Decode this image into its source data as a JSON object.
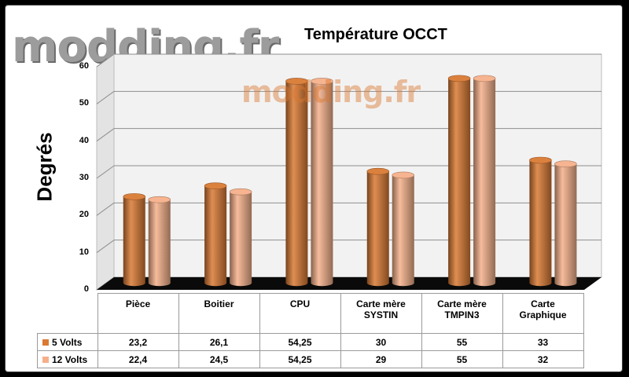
{
  "watermark": "modding.fr",
  "chart_data": {
    "type": "bar",
    "title": "Température OCCT",
    "ylabel": "Degrés",
    "xlabel": "",
    "ylim": [
      0,
      60
    ],
    "yticks": [
      "0",
      "10",
      "20",
      "30",
      "40",
      "50",
      "60"
    ],
    "categories": [
      "Pièce",
      "Boitier",
      "CPU",
      "Carte mère SYSTIN",
      "Carte mère TMPIN3",
      "Carte Graphique"
    ],
    "category_lines": [
      [
        "Pièce"
      ],
      [
        "Boitier"
      ],
      [
        "CPU"
      ],
      [
        "Carte mère",
        "SYSTIN"
      ],
      [
        "Carte mère",
        "TMPIN3"
      ],
      [
        "Carte",
        "Graphique"
      ]
    ],
    "series": [
      {
        "name": "5 Volts",
        "color": "#d97a34",
        "values": [
          23.2,
          26.1,
          54.25,
          30,
          55,
          33
        ],
        "labels": [
          "23,2",
          "26,1",
          "54,25",
          "30",
          "55",
          "33"
        ]
      },
      {
        "name": "12 Volts",
        "color": "#f5b08a",
        "values": [
          22.4,
          24.5,
          54.25,
          29,
          55,
          32
        ],
        "labels": [
          "22,4",
          "24,5",
          "54,25",
          "29",
          "55",
          "32"
        ]
      }
    ],
    "grid": true,
    "legend": "data table"
  }
}
